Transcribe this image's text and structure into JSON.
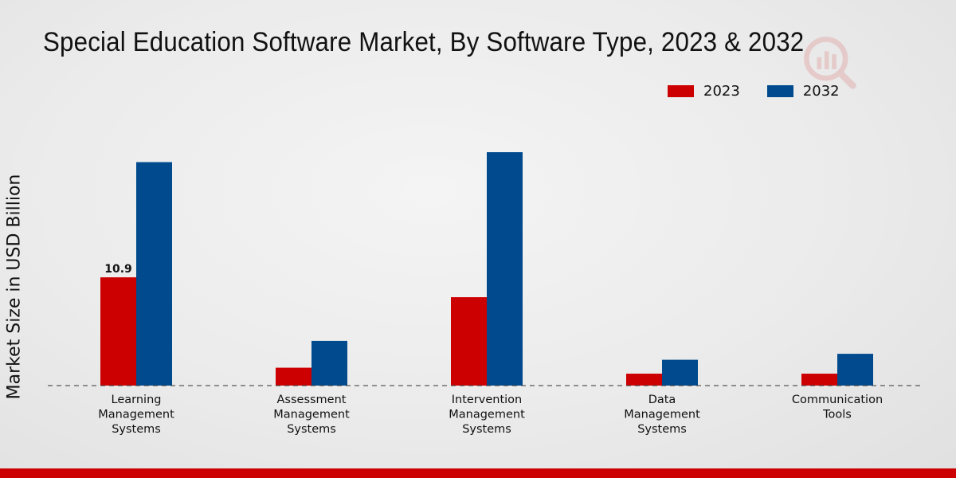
{
  "chart_data": {
    "type": "bar",
    "title": "Special Education Software Market, By Software Type, 2023 & 2032",
    "xlabel": "",
    "ylabel": "Market Size in USD Billion",
    "categories": [
      [
        "Learning",
        "Management",
        "Systems"
      ],
      [
        "Assessment",
        "Management",
        "Systems"
      ],
      [
        "Intervention",
        "Management",
        "Systems"
      ],
      [
        "Data",
        "Management",
        "Systems"
      ],
      [
        "Communication",
        "Tools"
      ]
    ],
    "series": [
      {
        "name": "2023",
        "color": "#cc0000",
        "values": [
          10.9,
          1.8,
          8.9,
          1.2,
          1.2
        ]
      },
      {
        "name": "2032",
        "color": "#004a8d",
        "values": [
          22.5,
          4.5,
          23.5,
          2.6,
          3.2
        ]
      }
    ],
    "data_labels": [
      {
        "series": 0,
        "index": 0,
        "text": "10.9"
      }
    ],
    "ylim": [
      0,
      30
    ],
    "grid": false,
    "legend_position": "top-right"
  }
}
